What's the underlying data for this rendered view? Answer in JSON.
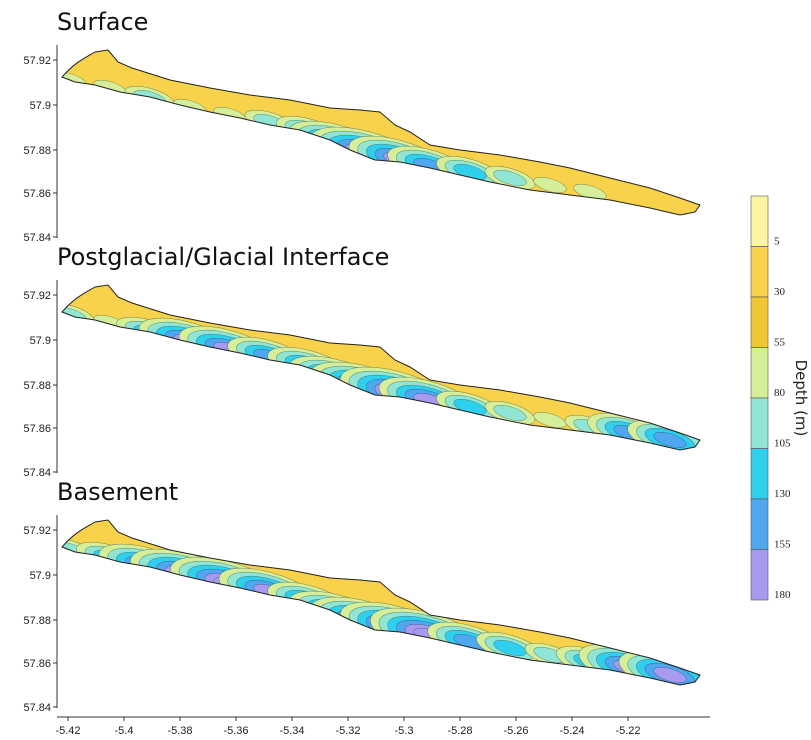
{
  "panels": [
    {
      "title": "Surface",
      "profile": [
        50,
        40,
        60,
        45,
        30,
        70,
        100,
        135,
        175,
        150,
        120,
        90,
        60,
        40,
        30,
        25,
        20
      ],
      "hasTitle": true
    },
    {
      "title": "Postglacial/Glacial Interface",
      "profile": [
        60,
        50,
        90,
        130,
        150,
        120,
        110,
        140,
        170,
        165,
        150,
        100,
        60,
        40,
        70,
        110,
        115
      ],
      "hasTitle": true
    },
    {
      "title": "Basement",
      "profile": [
        70,
        90,
        130,
        170,
        160,
        130,
        120,
        150,
        175,
        170,
        160,
        120,
        80,
        60,
        90,
        130,
        140
      ],
      "hasTitle": true
    }
  ],
  "yticks": [
    "57.92",
    "57.9",
    "57.88",
    "57.86",
    "57.84"
  ],
  "xticks": [
    "-5.42",
    "-5.4",
    "-5.38",
    "-5.36",
    "-5.34",
    "-5.32",
    "-5.3",
    "-5.28",
    "-5.26",
    "-5.24",
    "-5.22"
  ],
  "colorbar": {
    "label": "Depth (m)",
    "ticks": [
      "5",
      "30",
      "55",
      "80",
      "105",
      "130",
      "155",
      "180"
    ],
    "colors": [
      "#fdf5a2",
      "#f7d24a",
      "#f0c632",
      "#d4ee9a",
      "#8fe6d4",
      "#2fd0ee",
      "#4ea7f0",
      "#a89af0"
    ]
  }
}
